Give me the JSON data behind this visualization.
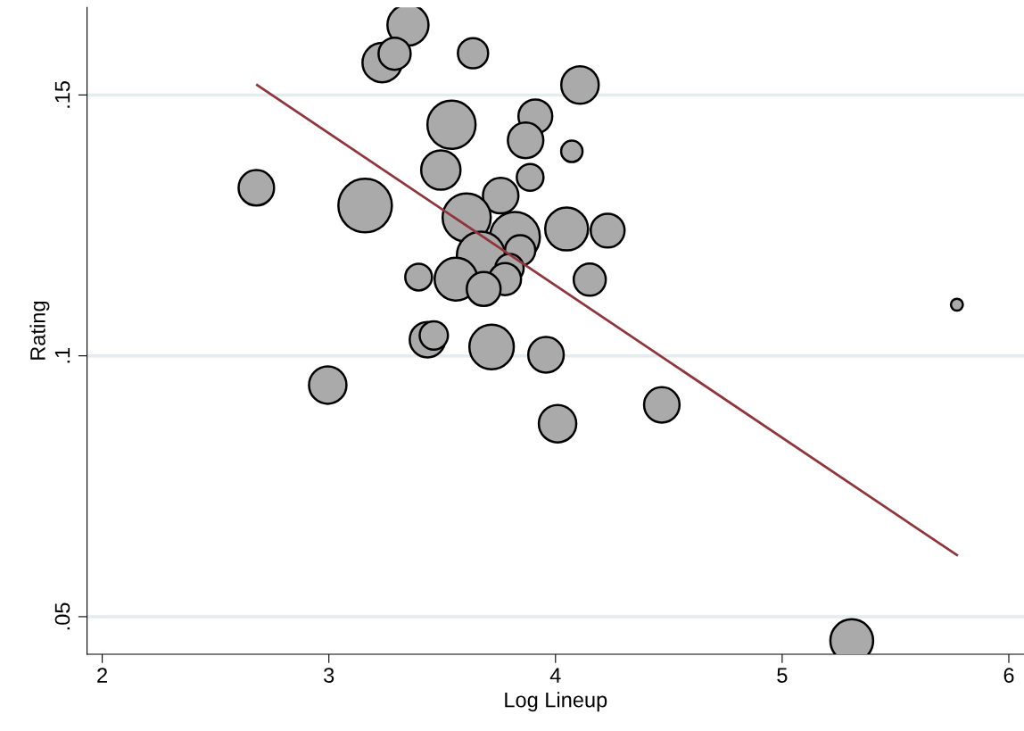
{
  "chart_data": {
    "type": "bubble",
    "xlabel": "Log Lineup",
    "ylabel": "Rating",
    "xlim": [
      1.933,
      6.067
    ],
    "ylim": [
      0.0428,
      0.1668
    ],
    "xticks": [
      2,
      3,
      4,
      5,
      6
    ],
    "yticks": [
      {
        "value": 0.05,
        "label": ".05"
      },
      {
        "value": 0.1,
        "label": ".1"
      },
      {
        "value": 0.15,
        "label": ".15"
      }
    ],
    "grid": "y",
    "legend": false,
    "series": [
      {
        "color": "#aaaaaa",
        "x": [
          3.349,
          3.235,
          3.29,
          3.636,
          4.108,
          3.541,
          3.911,
          3.868,
          4.072,
          3.494,
          2.68,
          3.888,
          3.758,
          3.16,
          3.608,
          4.049,
          4.23,
          3.821,
          3.671,
          3.844,
          3.797,
          3.777,
          3.561,
          3.396,
          4.151,
          3.683,
          5.771,
          3.435,
          3.463,
          3.718,
          3.958,
          2.995,
          4.469,
          4.009,
          5.307
        ],
        "values": [
          0.1634,
          0.1562,
          0.1579,
          0.158,
          0.1519,
          0.1443,
          0.1459,
          0.1413,
          0.1392,
          0.1356,
          0.1322,
          0.1342,
          0.1307,
          0.1288,
          0.1265,
          0.1243,
          0.124,
          0.1228,
          0.1192,
          0.1202,
          0.1168,
          0.1147,
          0.1147,
          0.1151,
          0.1146,
          0.1128,
          0.1098,
          0.1031,
          0.1039,
          0.1017,
          0.1002,
          0.0944,
          0.0906,
          0.087,
          0.0454
        ],
        "sizes": [
          0.59,
          0.54,
          0.36,
          0.32,
          0.49,
          0.81,
          0.4,
          0.44,
          0.16,
          0.54,
          0.44,
          0.25,
          0.44,
          1.0,
          0.81,
          0.64,
          0.4,
          0.87,
          0.81,
          0.32,
          0.28,
          0.36,
          0.64,
          0.25,
          0.36,
          0.4,
          0.05,
          0.44,
          0.28,
          0.69,
          0.44,
          0.49,
          0.44,
          0.49,
          0.64
        ]
      },
      {
        "type": "line",
        "color": "#90353b",
        "x": [
          2.684,
          5.771
        ],
        "values": [
          0.1519,
          0.0618
        ]
      }
    ]
  }
}
